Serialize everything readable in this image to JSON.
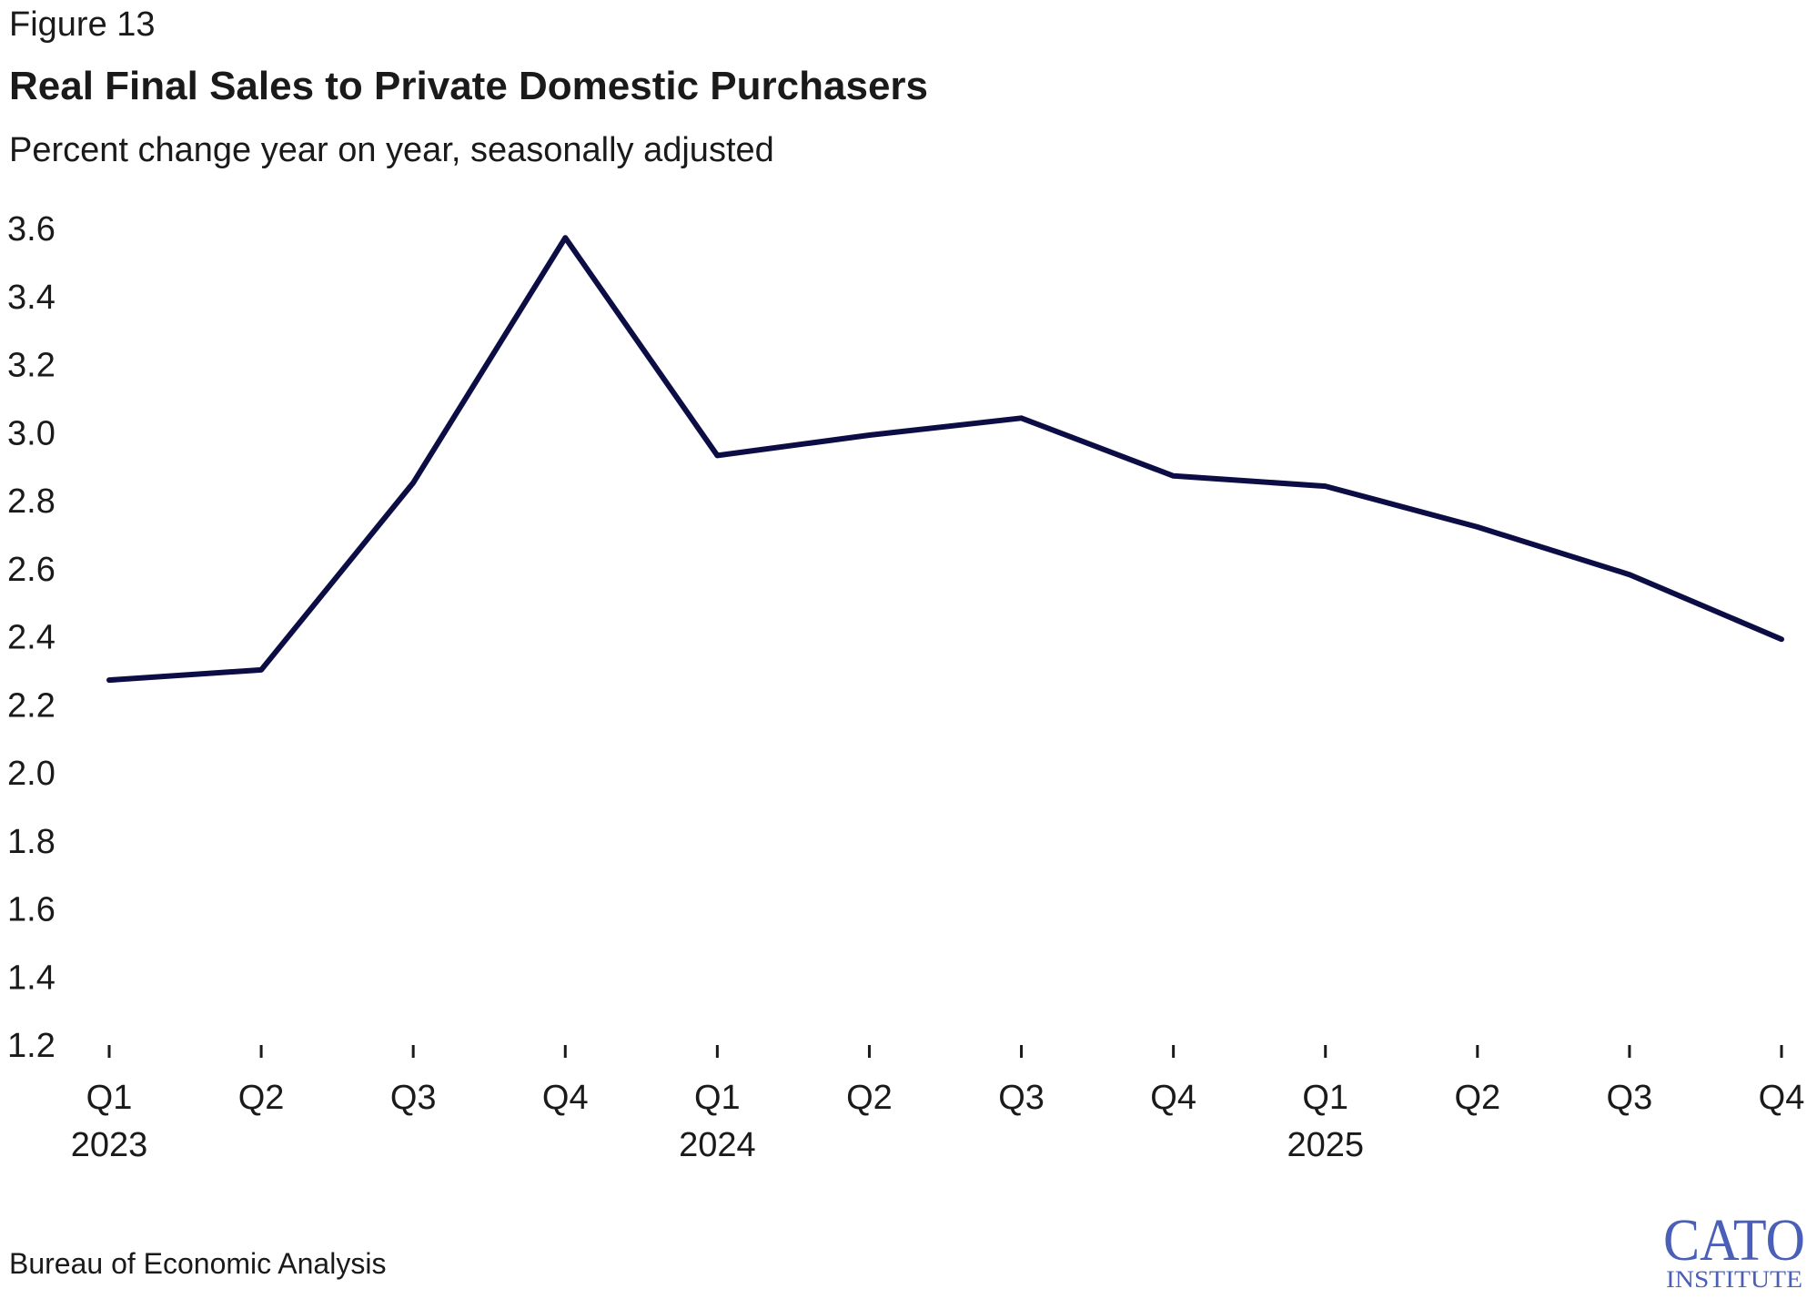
{
  "figure_label": "Figure 13",
  "source": "Bureau of Economic Analysis",
  "logo": {
    "main": "CATO",
    "sub": "INSTITUTE",
    "color": "#4a5fb8"
  },
  "colors": {
    "line": "#0d0d45",
    "text": "#1a1a1a"
  },
  "chart_data": {
    "type": "line",
    "title": "Real Final Sales to Private Domestic Purchasers",
    "subtitle": "Percent change year on year, seasonally adjusted",
    "xlabel": "",
    "ylabel": "",
    "categories": [
      "Q1",
      "Q2",
      "Q3",
      "Q4",
      "Q1",
      "Q2",
      "Q3",
      "Q4",
      "Q1",
      "Q2",
      "Q3",
      "Q4"
    ],
    "year_labels": [
      {
        "index": 0,
        "label": "2023"
      },
      {
        "index": 4,
        "label": "2024"
      },
      {
        "index": 8,
        "label": "2025"
      }
    ],
    "series": [
      {
        "name": "Real Final Sales to Private Domestic Purchasers",
        "values": [
          2.27,
          2.3,
          2.85,
          3.57,
          2.93,
          2.99,
          3.04,
          2.87,
          2.84,
          2.72,
          2.58,
          2.39
        ]
      }
    ],
    "ylim": [
      1.2,
      3.6
    ],
    "yticks": [
      1.2,
      1.4,
      1.6,
      1.8,
      2.0,
      2.2,
      2.4,
      2.6,
      2.8,
      3.0,
      3.2,
      3.4,
      3.6
    ],
    "ytick_labels": [
      "1.2",
      "1.4",
      "1.6",
      "1.8",
      "2.0",
      "2.2",
      "2.4",
      "2.6",
      "2.8",
      "3.0",
      "3.2",
      "3.4",
      "3.6"
    ],
    "grid": false,
    "legend": "none"
  }
}
